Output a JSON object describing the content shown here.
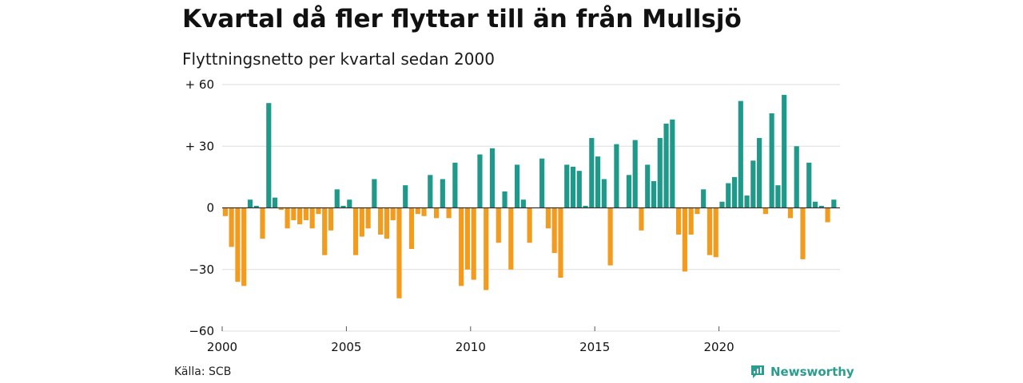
{
  "title": "Kvartal då fler flyttar till än från Mullsjö",
  "subtitle": "Flyttningsnetto per kvartal sedan 2000",
  "source": "Källa: SCB",
  "brand": "Newsworthy",
  "colors": {
    "positive": "#1f998a",
    "negative": "#f29b1d",
    "grid": "#dddddd",
    "axis": "#333333"
  },
  "chart_data": {
    "type": "bar",
    "y_tick_labels": [
      "+ 60",
      "+ 30",
      "0",
      "−30",
      "−60"
    ],
    "y_ticks": [
      60,
      30,
      0,
      -30,
      -60
    ],
    "x_tick_labels": [
      "2000",
      "2005",
      "2010",
      "2015",
      "2020"
    ],
    "x_ticks": [
      2000,
      2005,
      2010,
      2015,
      2020
    ],
    "ylim": [
      -60,
      60
    ],
    "grid": true,
    "series": [
      {
        "values": [
          -4,
          -19,
          -36,
          -38,
          4,
          1,
          -15,
          51,
          5,
          -1,
          -10,
          -6,
          -8,
          -6,
          -10,
          -3,
          -23,
          -11,
          9,
          1,
          4,
          -23,
          -14,
          -10,
          14,
          -13,
          -15,
          -6,
          -44,
          11,
          -20,
          -3,
          -4,
          16,
          -5,
          14,
          -5,
          22,
          -38,
          -30,
          -35,
          26,
          -40,
          29,
          -17,
          8,
          -30,
          21,
          4,
          -17,
          0,
          24,
          -10,
          -22,
          -34,
          21,
          20,
          18,
          1,
          34,
          25,
          14,
          -28,
          31,
          0,
          16,
          33,
          -11,
          21,
          13,
          34,
          41,
          43,
          -13,
          -31,
          -13,
          -3,
          9,
          -23,
          -24,
          3,
          12,
          15,
          52,
          6,
          23,
          34,
          -3,
          46,
          11,
          55,
          -5,
          30,
          -25,
          22,
          3,
          1,
          -7,
          4
        ]
      }
    ]
  }
}
